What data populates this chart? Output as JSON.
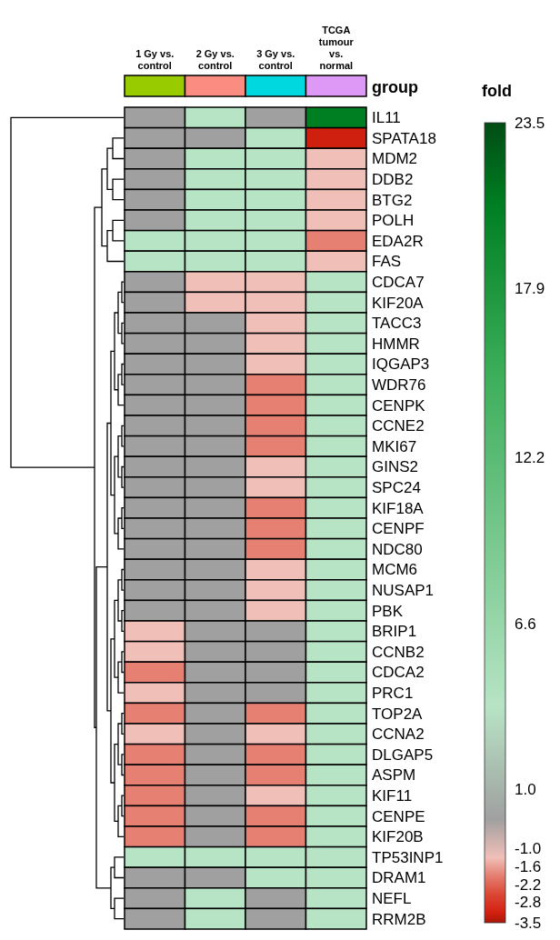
{
  "chart_data": {
    "type": "heatmap",
    "clabel": "fold",
    "annotations": [
      "group"
    ],
    "categories": [
      "1 Gy vs. control",
      "2 Gy vs. control",
      "3 Gy vs. control",
      "TCGA tumour vs. normal"
    ],
    "y_categories": [
      "IL11",
      "SPATA18",
      "MDM2",
      "DDB2",
      "BTG2",
      "POLH",
      "EDA2R",
      "FAS",
      "CDCA7",
      "KIF20A",
      "TACC3",
      "HMMR",
      "IQGAP3",
      "WDR76",
      "CENPK",
      "CCNE2",
      "MKI67",
      "GINS2",
      "SPC24",
      "KIF18A",
      "CENPF",
      "NDC80",
      "MCM6",
      "NUSAP1",
      "PBK",
      "BRIP1",
      "CCNB2",
      "CDCA2",
      "PRC1",
      "TOP2A",
      "CCNA2",
      "DLGAP5",
      "ASPM",
      "KIF11",
      "CENPE",
      "KIF20B",
      "TP53INP1",
      "DRAM1",
      "NEFL",
      "RRM2B"
    ],
    "cells": [
      [
        0,
        3.8,
        0,
        20.7
      ],
      [
        0,
        0,
        3.8,
        -3.2
      ],
      [
        0,
        3.8,
        3.8,
        -1.3
      ],
      [
        0,
        3.8,
        3.8,
        -1.3
      ],
      [
        0,
        3.8,
        3.8,
        -1.3
      ],
      [
        0,
        3.8,
        3.8,
        -1.3
      ],
      [
        3.8,
        3.8,
        3.8,
        -1.9
      ],
      [
        3.8,
        3.8,
        3.8,
        -1.3
      ],
      [
        0,
        -1.3,
        -1.3,
        3.8
      ],
      [
        0,
        -1.3,
        -1.3,
        3.8
      ],
      [
        0,
        0,
        -1.3,
        3.8
      ],
      [
        0,
        0,
        -1.3,
        3.8
      ],
      [
        0,
        0,
        -1.3,
        3.8
      ],
      [
        0,
        0,
        -1.9,
        3.8
      ],
      [
        0,
        0,
        -1.9,
        3.8
      ],
      [
        0,
        0,
        -1.9,
        3.8
      ],
      [
        0,
        0,
        -1.9,
        3.8
      ],
      [
        0,
        0,
        -1.3,
        3.8
      ],
      [
        0,
        0,
        -1.3,
        3.8
      ],
      [
        0,
        0,
        -1.9,
        3.8
      ],
      [
        0,
        0,
        -1.9,
        3.8
      ],
      [
        0,
        0,
        -1.9,
        3.8
      ],
      [
        0,
        0,
        -1.3,
        3.8
      ],
      [
        0,
        0,
        -1.3,
        3.8
      ],
      [
        0,
        0,
        -1.3,
        3.8
      ],
      [
        -1.3,
        0,
        0,
        3.8
      ],
      [
        -1.3,
        0,
        0,
        3.8
      ],
      [
        -1.9,
        0,
        0,
        3.8
      ],
      [
        -1.3,
        0,
        0,
        3.8
      ],
      [
        -1.9,
        0,
        -1.9,
        3.8
      ],
      [
        -1.3,
        0,
        -1.3,
        3.8
      ],
      [
        -1.9,
        0,
        -1.9,
        3.8
      ],
      [
        -1.9,
        0,
        -1.9,
        3.8
      ],
      [
        -1.9,
        0,
        -1.3,
        3.8
      ],
      [
        -1.9,
        0,
        -1.9,
        3.8
      ],
      [
        -1.9,
        0,
        -1.9,
        3.8
      ],
      [
        3.8,
        3.8,
        3.8,
        3.8
      ],
      [
        0,
        0,
        3.8,
        3.8
      ],
      [
        0,
        3.8,
        0,
        3.8
      ],
      [
        0,
        3.8,
        0,
        3.8
      ]
    ],
    "clim": [
      -3.5,
      23.5
    ],
    "cticks": [
      -3.5,
      -2.8,
      -2.2,
      -1.6,
      {
        "value": -1,
        "label": "-1.0"
      },
      {
        "value": 1,
        "label": "1.0"
      },
      6.6,
      12.2,
      17.9,
      23.5
    ]
  }
}
